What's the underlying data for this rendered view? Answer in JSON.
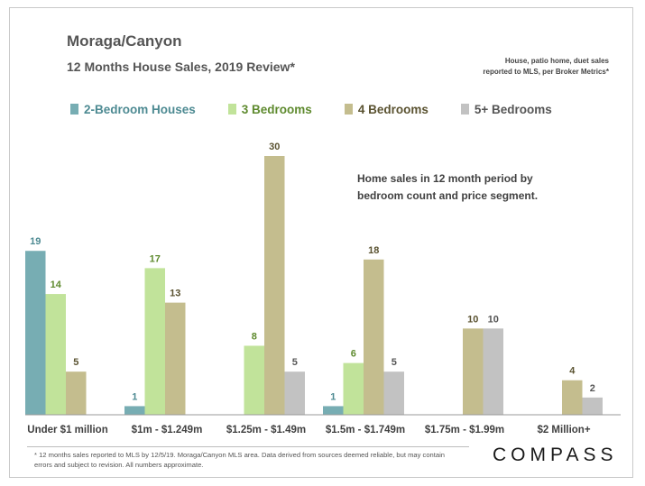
{
  "header": {
    "title": "Moraga/Canyon",
    "subtitle": "12 Months House Sales, 2019 Review*",
    "source_line1": "House, patio home, duet sales",
    "source_line2": "reported to MLS, per Broker Metrics*"
  },
  "annotation": {
    "line1": "Home sales in 12 month period by",
    "line2": "bedroom count and price segment."
  },
  "footnote": "* 12 months sales reported to MLS by 12/5/19. Moraga/Canyon MLS area. Data derived from sources deemed reliable, but may contain errors and subject to revision. All numbers approximate.",
  "logo": "COMPASS",
  "chart_data": {
    "type": "bar",
    "categories": [
      "Under $1 million",
      "$1m - $1.249m",
      "$1.25m - $1.49m",
      "$1.5m - $1.749m",
      "$1.75m - $1.99m",
      "$2 Million+"
    ],
    "series": [
      {
        "name": "2-Bedroom Houses",
        "color": "#77adb3",
        "label_color": "#4d8a92",
        "values": [
          19,
          1,
          null,
          1,
          null,
          null
        ]
      },
      {
        "name": "3 Bedrooms",
        "color": "#c1e39a",
        "label_color": "#5e8a2e",
        "values": [
          14,
          17,
          8,
          6,
          null,
          null
        ]
      },
      {
        "name": "4 Bedrooms",
        "color": "#c4bd8e",
        "label_color": "#5a5230",
        "values": [
          5,
          13,
          30,
          18,
          10,
          4
        ]
      },
      {
        "name": "5+ Bedrooms",
        "color": "#c2c2c2",
        "label_color": "#555555",
        "values": [
          null,
          null,
          5,
          5,
          10,
          2
        ]
      }
    ],
    "ylim": [
      0,
      30
    ],
    "grid": false,
    "legend": "top"
  }
}
